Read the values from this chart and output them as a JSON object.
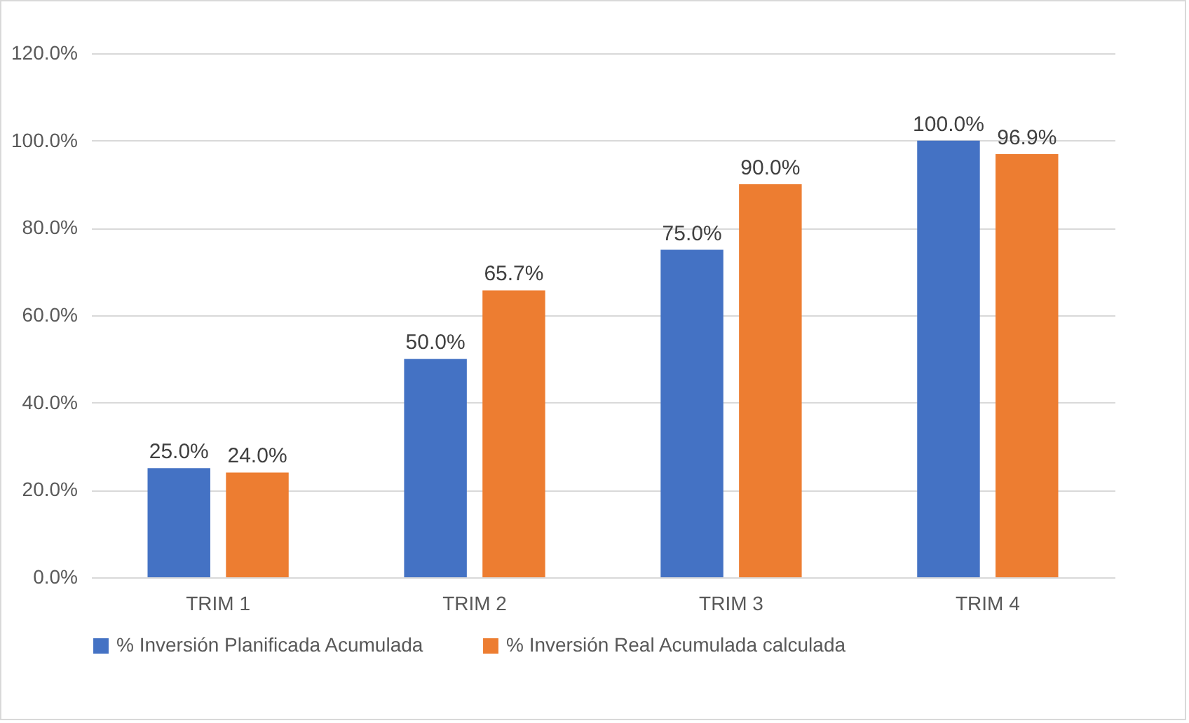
{
  "chart_data": {
    "type": "bar",
    "categories": [
      "TRIM 1",
      "TRIM 2",
      "TRIM 3",
      "TRIM 4"
    ],
    "series": [
      {
        "name": "% Inversión Planificada Acumulada",
        "color": "#4472c4",
        "values": [
          25,
          50,
          75,
          100
        ],
        "value_labels": [
          "25.0%",
          "50.0%",
          "75.0%",
          "100.0%"
        ]
      },
      {
        "name": "% Inversión Real Acumulada calculada",
        "color": "#ed7d31",
        "values": [
          24,
          65.7,
          90,
          96.9
        ],
        "value_labels": [
          "24.0%",
          "65.7%",
          "90.0%",
          "96.9%"
        ]
      }
    ],
    "ylim": [
      0,
      120
    ],
    "yticks": [
      {
        "value": 0,
        "label": "0.0%"
      },
      {
        "value": 20,
        "label": "20.0%"
      },
      {
        "value": 40,
        "label": "40.0%"
      },
      {
        "value": 60,
        "label": "60.0%"
      },
      {
        "value": 80,
        "label": "80.0%"
      },
      {
        "value": 100,
        "label": "100.0%"
      },
      {
        "value": 120,
        "label": "120.0%"
      }
    ],
    "grid": "y",
    "legend": "bottom"
  }
}
